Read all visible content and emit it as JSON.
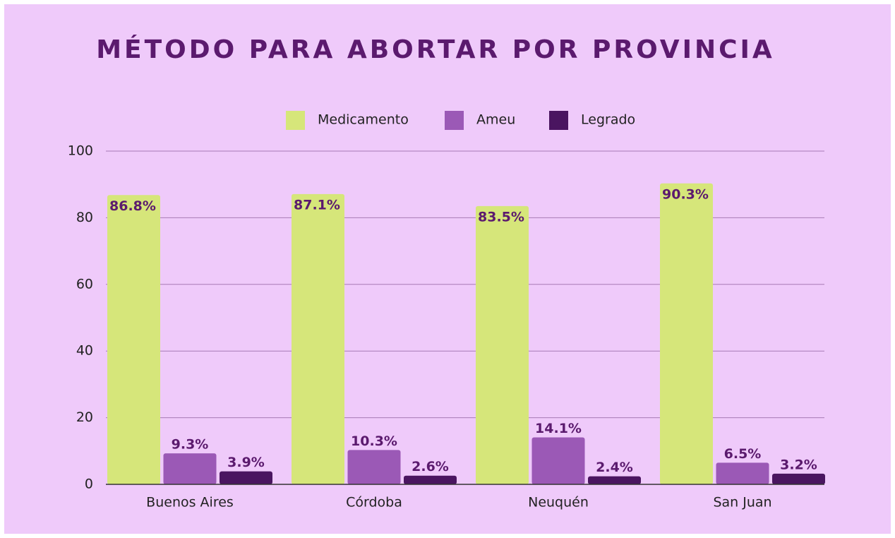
{
  "chart_data": {
    "type": "bar",
    "title": "MÉTODO PARA ABORTAR POR PROVINCIA",
    "categories": [
      "Buenos Aires",
      "Córdoba",
      "Neuquén",
      "San Juan"
    ],
    "series": [
      {
        "name": "Medicamento",
        "color": "#d6e67a",
        "values": [
          86.8,
          87.1,
          83.5,
          90.3
        ],
        "value_labels": [
          "86.8%",
          "87.1%",
          "83.5%",
          "90.3%"
        ]
      },
      {
        "name": "Ameu",
        "color": "#9b59b6",
        "values": [
          9.3,
          10.3,
          14.1,
          6.5
        ],
        "value_labels": [
          "9.3%",
          "10.3%",
          "14.1%",
          "6.5%"
        ]
      },
      {
        "name": "Legrado",
        "color": "#4a1560",
        "values": [
          3.9,
          2.6,
          2.4,
          3.2
        ],
        "value_labels": [
          "3.9%",
          "2.6%",
          "2.4%",
          "3.2%"
        ]
      }
    ],
    "ylim": [
      0,
      100
    ],
    "yticks": [
      0,
      20,
      40,
      60,
      80,
      100
    ],
    "grid": true,
    "legend": "top"
  }
}
